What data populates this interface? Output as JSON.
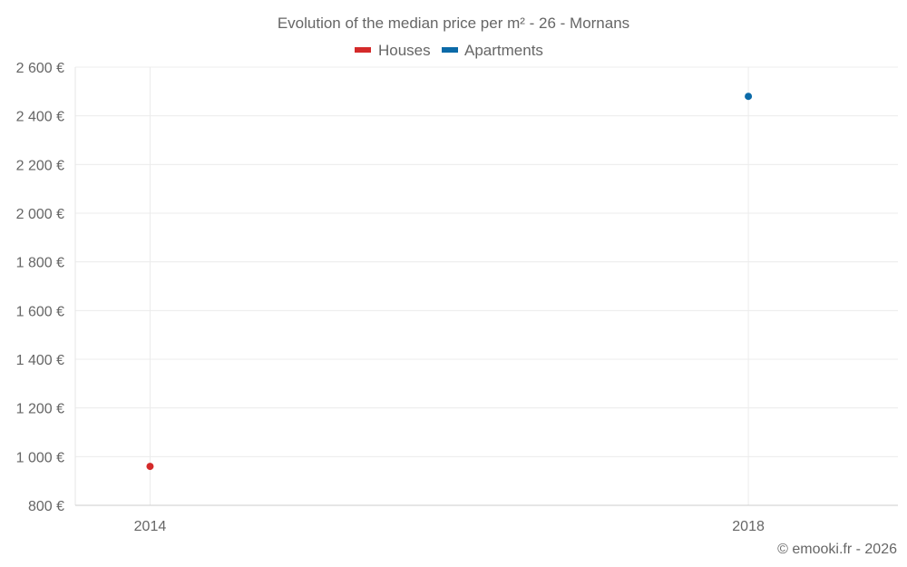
{
  "chart_data": {
    "type": "scatter",
    "title": "Evolution of the median price per m² - 26 - Mornans",
    "xlabel": "",
    "ylabel": "",
    "x_categories": [
      "2014",
      "2018"
    ],
    "x_range": [
      2013.5,
      2019.0
    ],
    "ylim": [
      800,
      2600
    ],
    "y_ticks": [
      800,
      1000,
      1200,
      1400,
      1600,
      1800,
      2000,
      2200,
      2400,
      2600
    ],
    "y_tick_labels": [
      "800 €",
      "1 000 €",
      "1 200 €",
      "1 400 €",
      "1 600 €",
      "1 800 €",
      "2 000 €",
      "2 200 €",
      "2 400 €",
      "2 600 €"
    ],
    "grid": true,
    "legend_position": "top-center",
    "series": [
      {
        "name": "Houses",
        "color": "#d42a2a",
        "points": [
          {
            "x": 2014,
            "y": 960
          }
        ]
      },
      {
        "name": "Apartments",
        "color": "#0b6aa8",
        "points": [
          {
            "x": 2018,
            "y": 2480
          }
        ]
      }
    ]
  },
  "credit": "© emooki.fr - 2026"
}
